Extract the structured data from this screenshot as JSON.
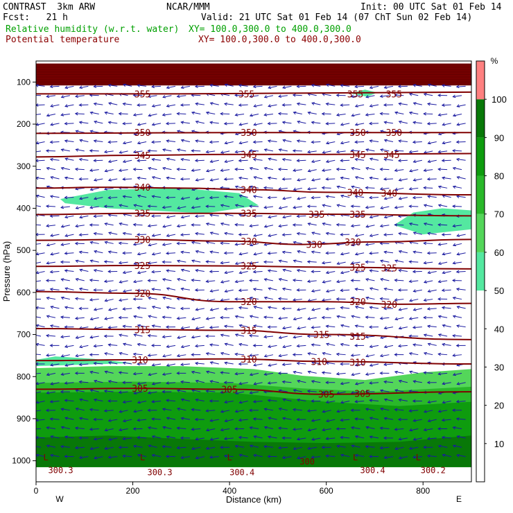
{
  "header": {
    "model": "CONTRAST  3km ARW",
    "org": "NCAR/MMM",
    "init": "Init: 00 UTC Sat 01 Feb 14",
    "fcst": "Fcst:   21 h",
    "valid": "Valid: 21 UTC Sat 01 Feb 14 (07 ChT Sun 02 Feb 14)",
    "field1": "Relative humidity (w.r.t. water)",
    "field1_xy": "XY= 100.0,300.0 to 400.0,300.0",
    "field2": "Potential temperature",
    "field2_xy": "XY= 100.0,300.0 to 400.0,300.0"
  },
  "colors": {
    "theta": "#800000",
    "wind": "#1a1aa0",
    "rh": [
      "#ffffff",
      "#54e8a0",
      "#54d65a",
      "#2ab82a",
      "#0e9c0e",
      "#087808",
      "#ff8080"
    ],
    "cap": "#800000"
  },
  "chart_data": {
    "type": "cross-section",
    "xlabel": "Distance (km)",
    "ylabel": "Pressure (hPa)",
    "xlim": [
      0,
      900
    ],
    "ylim": [
      1050,
      50
    ],
    "x_ticks": [
      "0",
      "200",
      "400",
      "600",
      "800"
    ],
    "x_tick_values": [
      0,
      200,
      400,
      600,
      800
    ],
    "y_ticks": [
      "100",
      "200",
      "300",
      "400",
      "500",
      "600",
      "700",
      "800",
      "900",
      "1000"
    ],
    "y_tick_values": [
      100,
      200,
      300,
      400,
      500,
      600,
      700,
      800,
      900,
      1000
    ],
    "endpoints": {
      "left": "W",
      "right": "E"
    },
    "colorbar": {
      "unit": "%",
      "levels": [
        "10",
        "20",
        "30",
        "40",
        "50",
        "60",
        "70",
        "80",
        "90",
        "100"
      ],
      "level_values": [
        10,
        20,
        30,
        40,
        50,
        60,
        70,
        80,
        90,
        100
      ],
      "bands": [
        {
          "from": 0,
          "to": 50,
          "color": "#ffffff"
        },
        {
          "from": 50,
          "to": 60,
          "color": "#54e8a0"
        },
        {
          "from": 60,
          "to": 70,
          "color": "#54d65a"
        },
        {
          "from": 70,
          "to": 80,
          "color": "#2ab82a"
        },
        {
          "from": 80,
          "to": 90,
          "color": "#0e9c0e"
        },
        {
          "from": 90,
          "to": 100,
          "color": "#087808"
        },
        {
          "from": 100,
          "to": 110,
          "color": "#ff8080"
        }
      ]
    },
    "theta_contours": [
      {
        "label": "355",
        "points": [
          [
            0,
            128
          ],
          [
            300,
            128
          ],
          [
            600,
            126
          ],
          [
            900,
            124
          ]
        ],
        "label_at": [
          [
            220,
            128
          ],
          [
            435,
            128
          ],
          [
            660,
            128
          ],
          [
            740,
            128
          ]
        ]
      },
      {
        "label": "350",
        "points": [
          [
            0,
            222
          ],
          [
            200,
            221
          ],
          [
            400,
            220
          ],
          [
            600,
            220
          ],
          [
            900,
            220
          ]
        ],
        "label_at": [
          [
            220,
            220
          ],
          [
            440,
            220
          ],
          [
            665,
            220
          ],
          [
            740,
            220
          ]
        ]
      },
      {
        "label": "345",
        "points": [
          [
            0,
            278
          ],
          [
            200,
            274
          ],
          [
            400,
            272
          ],
          [
            600,
            272
          ],
          [
            900,
            270
          ]
        ],
        "label_at": [
          [
            220,
            274
          ],
          [
            440,
            272
          ],
          [
            665,
            272
          ],
          [
            735,
            272
          ]
        ]
      },
      {
        "label": "340",
        "points": [
          [
            0,
            352
          ],
          [
            150,
            350
          ],
          [
            300,
            352
          ],
          [
            450,
            356
          ],
          [
            600,
            362
          ],
          [
            900,
            368
          ]
        ],
        "label_at": [
          [
            220,
            350
          ],
          [
            440,
            356
          ],
          [
            660,
            362
          ],
          [
            730,
            364
          ]
        ]
      },
      {
        "label": "335",
        "points": [
          [
            0,
            415
          ],
          [
            200,
            412
          ],
          [
            400,
            412
          ],
          [
            600,
            414
          ],
          [
            900,
            418
          ]
        ],
        "label_at": [
          [
            220,
            412
          ],
          [
            440,
            412
          ],
          [
            580,
            414
          ],
          [
            665,
            414
          ]
        ]
      },
      {
        "label": "330",
        "points": [
          [
            0,
            476
          ],
          [
            200,
            474
          ],
          [
            400,
            478
          ],
          [
            550,
            486
          ],
          [
            700,
            480
          ],
          [
            900,
            474
          ]
        ],
        "label_at": [
          [
            220,
            474
          ],
          [
            440,
            478
          ],
          [
            575,
            486
          ],
          [
            655,
            480
          ]
        ]
      },
      {
        "label": "325",
        "points": [
          [
            0,
            538
          ],
          [
            200,
            536
          ],
          [
            400,
            537
          ],
          [
            600,
            540
          ],
          [
            900,
            544
          ]
        ],
        "label_at": [
          [
            220,
            536
          ],
          [
            440,
            537
          ],
          [
            665,
            540
          ],
          [
            730,
            542
          ]
        ]
      },
      {
        "label": "320",
        "points": [
          [
            0,
            598
          ],
          [
            200,
            602
          ],
          [
            400,
            622
          ],
          [
            600,
            622
          ],
          [
            750,
            628
          ],
          [
            900,
            626
          ]
        ],
        "label_at": [
          [
            220,
            602
          ],
          [
            440,
            622
          ],
          [
            665,
            622
          ],
          [
            730,
            628
          ]
        ]
      },
      {
        "label": "315",
        "points": [
          [
            0,
            686
          ],
          [
            200,
            688
          ],
          [
            400,
            690
          ],
          [
            600,
            700
          ],
          [
            900,
            712
          ]
        ],
        "label_at": [
          [
            220,
            688
          ],
          [
            440,
            690
          ],
          [
            590,
            700
          ],
          [
            665,
            704
          ]
        ]
      },
      {
        "label": "310",
        "points": [
          [
            0,
            762
          ],
          [
            200,
            760
          ],
          [
            400,
            758
          ],
          [
            600,
            764
          ],
          [
            900,
            770
          ]
        ],
        "label_at": [
          [
            215,
            760
          ],
          [
            440,
            758
          ],
          [
            585,
            764
          ],
          [
            665,
            766
          ]
        ]
      },
      {
        "label": "305",
        "points": [
          [
            0,
            830
          ],
          [
            200,
            828
          ],
          [
            400,
            830
          ],
          [
            600,
            842
          ],
          [
            900,
            836
          ]
        ],
        "label_at": [
          [
            215,
            828
          ],
          [
            400,
            830
          ],
          [
            600,
            842
          ],
          [
            675,
            840
          ]
        ]
      }
    ],
    "surface_labels": [
      {
        "label": "L",
        "x": 15,
        "p": 992
      },
      {
        "label": "300.3",
        "x": 25,
        "p": 1023
      },
      {
        "label": "L",
        "x": 215,
        "p": 992
      },
      {
        "label": "300.3",
        "x": 230,
        "p": 1028
      },
      {
        "label": "L",
        "x": 395,
        "p": 992
      },
      {
        "label": "300.4",
        "x": 400,
        "p": 1028
      },
      {
        "label": "300",
        "x": 545,
        "p": 1002
      },
      {
        "label": "L",
        "x": 655,
        "p": 992
      },
      {
        "label": "300.4",
        "x": 670,
        "p": 1023
      },
      {
        "label": "L",
        "x": 785,
        "p": 992
      },
      {
        "label": "300.2",
        "x": 795,
        "p": 1023
      }
    ],
    "rh_regions": [
      {
        "level": 60,
        "points": [
          [
            0,
            780
          ],
          [
            150,
            775
          ],
          [
            300,
            775
          ],
          [
            450,
            782
          ],
          [
            550,
            798
          ],
          [
            680,
            808
          ],
          [
            800,
            790
          ],
          [
            900,
            782
          ],
          [
            900,
            1015
          ],
          [
            0,
            1015
          ]
        ]
      },
      {
        "level": 70,
        "points": [
          [
            0,
            815
          ],
          [
            200,
            812
          ],
          [
            400,
            815
          ],
          [
            550,
            828
          ],
          [
            700,
            836
          ],
          [
            900,
            824
          ],
          [
            900,
            1015
          ],
          [
            0,
            1015
          ]
        ]
      },
      {
        "level": 80,
        "points": [
          [
            0,
            838
          ],
          [
            200,
            836
          ],
          [
            400,
            838
          ],
          [
            600,
            860
          ],
          [
            750,
            870
          ],
          [
            900,
            860
          ],
          [
            900,
            1015
          ],
          [
            0,
            1015
          ]
        ]
      },
      {
        "level": 90,
        "points": [
          [
            0,
            945
          ],
          [
            150,
            940
          ],
          [
            300,
            948
          ],
          [
            450,
            955
          ],
          [
            600,
            958
          ],
          [
            750,
            955
          ],
          [
            900,
            940
          ],
          [
            900,
            1015
          ],
          [
            0,
            1015
          ]
        ]
      },
      {
        "level": 50,
        "points": [
          [
            50,
            378
          ],
          [
            150,
            356
          ],
          [
            300,
            352
          ],
          [
            420,
            364
          ],
          [
            460,
            393
          ],
          [
            350,
            412
          ],
          [
            150,
            400
          ],
          [
            60,
            388
          ]
        ]
      },
      {
        "level": 50,
        "points": [
          [
            740,
            440
          ],
          [
            780,
            410
          ],
          [
            840,
            400
          ],
          [
            900,
            405
          ],
          [
            900,
            450
          ],
          [
            800,
            462
          ]
        ]
      },
      {
        "level": 50,
        "points": [
          [
            650,
            127
          ],
          [
            680,
            118
          ],
          [
            705,
            125
          ],
          [
            685,
            135
          ]
        ]
      },
      {
        "level": 50,
        "points": [
          [
            0,
            760
          ],
          [
            40,
            752
          ],
          [
            120,
            758
          ],
          [
            200,
            768
          ],
          [
            0,
            775
          ]
        ]
      },
      {
        "level": 100,
        "points": [
          [
            0,
            56
          ],
          [
            900,
            56
          ],
          [
            900,
            108
          ],
          [
            0,
            108
          ]
        ]
      }
    ],
    "wind_arrows": "schematic"
  }
}
